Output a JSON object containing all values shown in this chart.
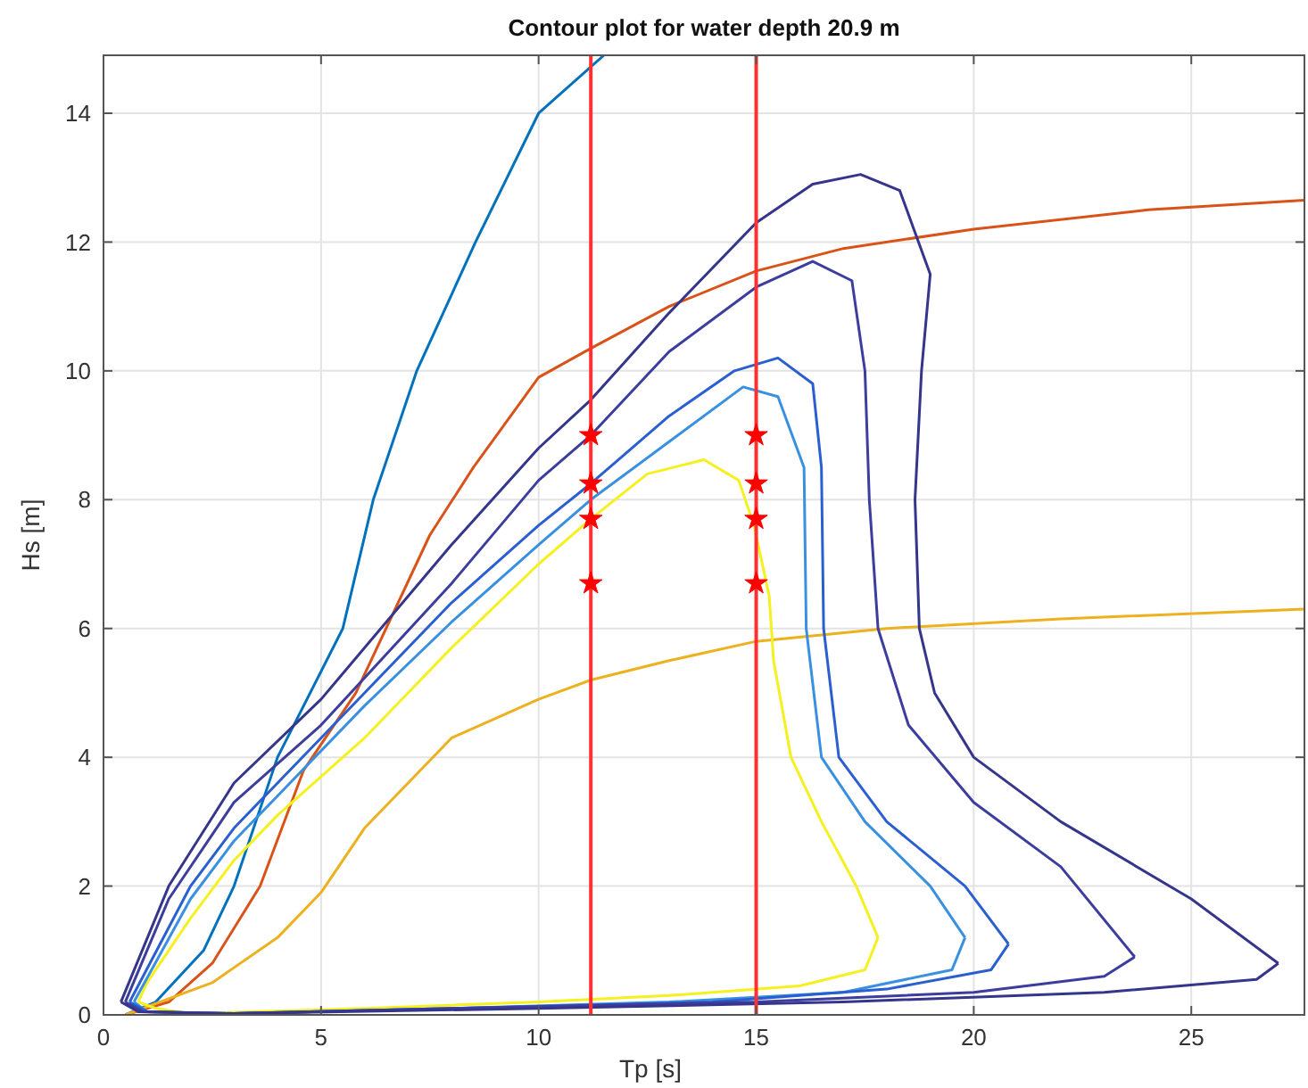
{
  "chart_data": {
    "type": "line",
    "title": "Contour plot for water depth 20.9 m",
    "xlabel": "Tp [s]",
    "ylabel": "Hs [m]",
    "xlim": [
      0,
      27.6
    ],
    "ylim": [
      0,
      14.9
    ],
    "xticks": [
      0,
      5,
      10,
      15,
      20,
      25
    ],
    "yticks": [
      0,
      2,
      4,
      6,
      8,
      10,
      12,
      14
    ],
    "grid": true,
    "ref_lines": [
      {
        "axis": "x",
        "value": 11.2,
        "color": "#ff3030"
      },
      {
        "axis": "x",
        "value": 15,
        "color": "#ff3030"
      }
    ],
    "series": [
      {
        "color": "#0072bd",
        "x": [
          0.5,
          1.2,
          2.3,
          3.0,
          4.0,
          5.5,
          6.2,
          7.2,
          8.55,
          10.0,
          11.5
        ],
        "values": [
          0,
          0.2,
          1,
          2,
          4,
          6,
          8,
          10,
          12,
          14,
          14.9
        ]
      },
      {
        "color": "#d95319",
        "x": [
          0.5,
          1.5,
          2.5,
          3.6,
          4.6,
          5.8,
          7.5,
          8.5,
          10,
          11.2,
          13,
          15,
          17,
          20,
          24,
          27.6
        ],
        "values": [
          0,
          0.2,
          0.8,
          2,
          3.8,
          5,
          7.45,
          8.5,
          9.9,
          10.35,
          11,
          11.55,
          11.9,
          12.2,
          12.5,
          12.65
        ]
      },
      {
        "color": "#edb120",
        "x": [
          0.5,
          2.5,
          4,
          5,
          6,
          7,
          8,
          10,
          11.2,
          13,
          15,
          18,
          22,
          27.6
        ],
        "values": [
          0,
          0.5,
          1.2,
          1.9,
          2.9,
          3.6,
          4.3,
          4.9,
          5.2,
          5.5,
          5.8,
          6.0,
          6.15,
          6.3
        ]
      },
      {
        "color": "#f5f020",
        "x": [
          0.8,
          1,
          2,
          3,
          4,
          5,
          6,
          8,
          10,
          11.2,
          12.5,
          13.8,
          14.6,
          14.95,
          15.3,
          15.4,
          15.8,
          16.5,
          17.3,
          17.8
        ],
        "values": [
          0.2,
          0.5,
          1.5,
          2.4,
          3.1,
          3.7,
          4.3,
          5.7,
          7.0,
          7.7,
          8.4,
          8.62,
          8.3,
          7.6,
          6.5,
          5.5,
          4,
          3,
          2,
          1.2
        ]
      },
      {
        "color": "#f5f020",
        "x": [
          0.8,
          1.2,
          2,
          6,
          10,
          13,
          16,
          17.5,
          17.8
        ],
        "values": [
          0.2,
          0.1,
          0.02,
          0.1,
          0.2,
          0.3,
          0.45,
          0.7,
          1.2
        ]
      },
      {
        "color": "#3a90e0",
        "x": [
          0.7,
          2,
          3,
          4,
          6,
          8,
          10,
          11.2,
          13,
          14.7,
          15.5,
          16.1,
          16.15,
          16.5,
          17.5,
          19,
          19.8
        ],
        "values": [
          0.2,
          1.8,
          2.7,
          3.4,
          4.8,
          6.1,
          7.3,
          8.0,
          8.9,
          9.75,
          9.6,
          8.5,
          6,
          4,
          3,
          2,
          1.2
        ]
      },
      {
        "color": "#3a90e0",
        "x": [
          0.7,
          1,
          3,
          8,
          13,
          17,
          19.5,
          19.8
        ],
        "values": [
          0.2,
          0.05,
          0.02,
          0.1,
          0.2,
          0.35,
          0.7,
          1.2
        ]
      },
      {
        "color": "#2a5fd0",
        "x": [
          0.6,
          2,
          3,
          4,
          6,
          8,
          10,
          11.2,
          13,
          14.5,
          15.5,
          16.3,
          16.5,
          16.55,
          16.9,
          18,
          19.8,
          20.8
        ],
        "values": [
          0.2,
          2,
          2.9,
          3.6,
          5,
          6.4,
          7.6,
          8.25,
          9.3,
          10.0,
          10.2,
          9.8,
          8.5,
          6,
          4,
          3,
          2,
          1.1
        ]
      },
      {
        "color": "#2a5fd0",
        "x": [
          0.6,
          1,
          3,
          8,
          14,
          18,
          20.4,
          20.8
        ],
        "values": [
          0.2,
          0.05,
          0.02,
          0.1,
          0.2,
          0.4,
          0.7,
          1.1
        ]
      },
      {
        "color": "#3d3d9e",
        "x": [
          0.5,
          1.5,
          3,
          5,
          8,
          10,
          11.2,
          13,
          15,
          16.3,
          17.2,
          17.5,
          17.6,
          17.8,
          18.5,
          20,
          22,
          23.7
        ],
        "values": [
          0.2,
          1.8,
          3.3,
          4.5,
          6.7,
          8.3,
          9.0,
          10.3,
          11.3,
          11.7,
          11.4,
          10,
          8,
          6,
          4.5,
          3.3,
          2.3,
          0.9
        ]
      },
      {
        "color": "#3d3d9e",
        "x": [
          0.5,
          0.9,
          3,
          8,
          15,
          20,
          23,
          23.7
        ],
        "values": [
          0.2,
          0.05,
          0.02,
          0.1,
          0.2,
          0.35,
          0.6,
          0.9
        ]
      },
      {
        "color": "#35358c",
        "x": [
          0.4,
          1.5,
          3,
          5,
          8,
          10,
          11.2,
          13,
          15,
          16.3,
          17.4,
          18.3,
          19.0,
          18.8,
          18.65,
          18.75,
          19.1,
          20,
          22,
          25,
          27
        ],
        "values": [
          0.2,
          2,
          3.6,
          4.9,
          7.3,
          8.8,
          9.55,
          10.9,
          12.3,
          12.9,
          13.05,
          12.8,
          11.5,
          10,
          8,
          6,
          5,
          4,
          3,
          1.8,
          0.8
        ]
      },
      {
        "color": "#35358c",
        "x": [
          0.4,
          0.8,
          3,
          10,
          17,
          23,
          26.5,
          27
        ],
        "values": [
          0.2,
          0.05,
          0.02,
          0.1,
          0.2,
          0.35,
          0.55,
          0.8
        ]
      },
      {
        "type": "scatter",
        "marker": "star",
        "color": "#ff0000",
        "x": [
          11.2,
          11.2,
          11.2,
          11.2,
          15,
          15,
          15,
          15
        ],
        "values": [
          9.0,
          8.25,
          7.7,
          6.7,
          9.0,
          8.25,
          7.7,
          6.7
        ]
      }
    ]
  }
}
